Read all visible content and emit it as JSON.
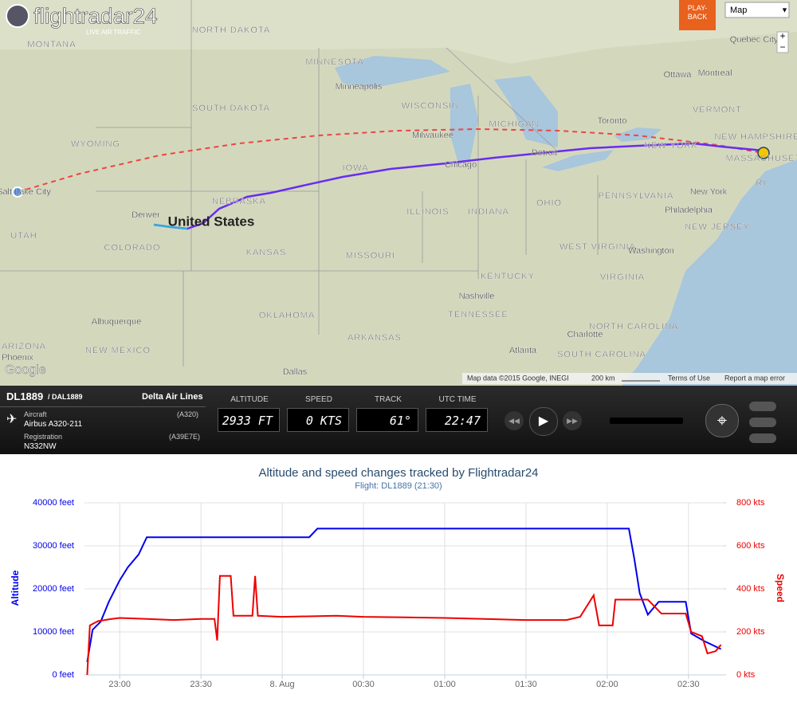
{
  "header": {
    "logo": "flightradar24",
    "tagline": "LIVE AIR TRAFFIC",
    "playback": "PLAY-\nBACK",
    "map_select": "Map"
  },
  "map": {
    "labels": [
      "MONTANA",
      "NORTH DAKOTA",
      "MINNESOTA",
      "SOUTH DAKOTA",
      "WYOMING",
      "Minneapolis",
      "WISCONSIN",
      "MICHIGAN",
      "Milwaukee",
      "Toronto",
      "Ottawa",
      "Montreal",
      "Quebec City",
      "VERMONT",
      "NEW HAMPSHIRE",
      "NEW YORK",
      "MASSACHUSETTS",
      "Detroit",
      "Chicago",
      "IOWA",
      "NEBRASKA",
      "Denver",
      "United States",
      "ILLINOIS",
      "INDIANA",
      "OHIO",
      "PENNSYLVANIA",
      "New York",
      "Philadelphia",
      "NEW JERSEY",
      "UTAH",
      "COLORADO",
      "KANSAS",
      "MISSOURI",
      "WEST VIRGINIA",
      "Washington",
      "Salt Lake City",
      "KENTUCKY",
      "VIRGINIA",
      "Nashville",
      "TENNESSEE",
      "OKLAHOMA",
      "Albuquerque",
      "NORTH CAROLINA",
      "Charlotte",
      "ARKANSAS",
      "SOUTH CAROLINA",
      "Atlanta",
      "ARIZONA",
      "NEW MEXICO",
      "Phoenix",
      "Dallas",
      "RI"
    ],
    "footer": {
      "google": "Google",
      "data": "Map data ©2015 Google, INEGI",
      "scale": "200 km",
      "terms": "Terms of Use",
      "report": "Report a map error"
    }
  },
  "info": {
    "flight": "DL1889",
    "callsign": "/ DAL1889",
    "airline": "Delta Air Lines",
    "aircraft_label": "Aircraft",
    "aircraft_code": "(A320)",
    "aircraft": "Airbus A320-211",
    "registration_label": "Registration",
    "hex": "(A39E7E)",
    "registration": "N332NW",
    "readouts": [
      {
        "label": "ALTITUDE",
        "value": "2933 FT"
      },
      {
        "label": "SPEED",
        "value": "0 KTS"
      },
      {
        "label": "TRACK",
        "value": "61°"
      },
      {
        "label": "UTC TIME",
        "value": "22:47"
      }
    ]
  },
  "chart_data": {
    "type": "line",
    "title": "Altitude and speed changes tracked by Flightradar24",
    "subtitle": "Flight: DL1889 (21:30)",
    "y_label": "Altitude",
    "y2_label": "Speed",
    "xlim": [
      "22:47",
      "02:43"
    ],
    "xticks": [
      "23:00",
      "23:30",
      {
        "value": "00:00",
        "label": "8. Aug"
      },
      "00:30",
      "01:00",
      "01:30",
      "02:00",
      "02:30"
    ],
    "ylim": [
      0,
      40000
    ],
    "yticks": [
      {
        "value": 0,
        "label": "0 feet"
      },
      {
        "value": 10000,
        "label": "10000 feet"
      },
      {
        "value": 20000,
        "label": "20000 feet"
      },
      {
        "value": 30000,
        "label": "30000 feet"
      },
      {
        "value": 40000,
        "label": "40000 feet"
      }
    ],
    "y2lim": [
      0,
      800
    ],
    "y2ticks": [
      {
        "value": 0,
        "label": "0 kts"
      },
      {
        "value": 200,
        "label": "200 kts"
      },
      {
        "value": 400,
        "label": "400 kts"
      },
      {
        "value": 600,
        "label": "600 kts"
      },
      {
        "value": 800,
        "label": "800 kts"
      }
    ],
    "grid": true,
    "series": [
      {
        "name": "Altitude",
        "color": "#0000ee",
        "x": [
          "22:48",
          "22:50",
          "22:53",
          "22:56",
          "23:00",
          "23:03",
          "23:07",
          "23:10",
          "00:10",
          "00:13",
          "02:08",
          "02:10",
          "02:12",
          "02:15",
          "02:19",
          "02:29",
          "02:31",
          "02:36",
          "02:42"
        ],
        "values": [
          3000,
          10500,
          12400,
          17000,
          22000,
          25000,
          28000,
          32000,
          32000,
          34000,
          34000,
          27000,
          19000,
          14000,
          17000,
          17000,
          9600,
          7800,
          6000
        ]
      },
      {
        "name": "Speed",
        "color": "#ee0000",
        "axis": "y2",
        "x": [
          "22:48",
          "22:49",
          "22:52",
          "22:57",
          "23:00",
          "23:10",
          "23:20",
          "23:30",
          "23:35",
          "23:36",
          "23:37",
          "23:41",
          "23:42",
          "23:49",
          "23:50",
          "23:51",
          "00:00",
          "00:20",
          "00:30",
          "01:00",
          "01:30",
          "01:45",
          "01:50",
          "01:55",
          "01:57",
          "02:02",
          "02:03",
          "02:15",
          "02:20",
          "02:29",
          "02:31",
          "02:35",
          "02:37",
          "02:40",
          "02:42"
        ],
        "values": [
          0,
          230,
          250,
          260,
          265,
          260,
          255,
          260,
          260,
          160,
          460,
          460,
          275,
          275,
          460,
          275,
          270,
          275,
          270,
          265,
          255,
          255,
          270,
          370,
          230,
          230,
          350,
          350,
          285,
          285,
          200,
          180,
          100,
          110,
          140
        ]
      }
    ]
  }
}
